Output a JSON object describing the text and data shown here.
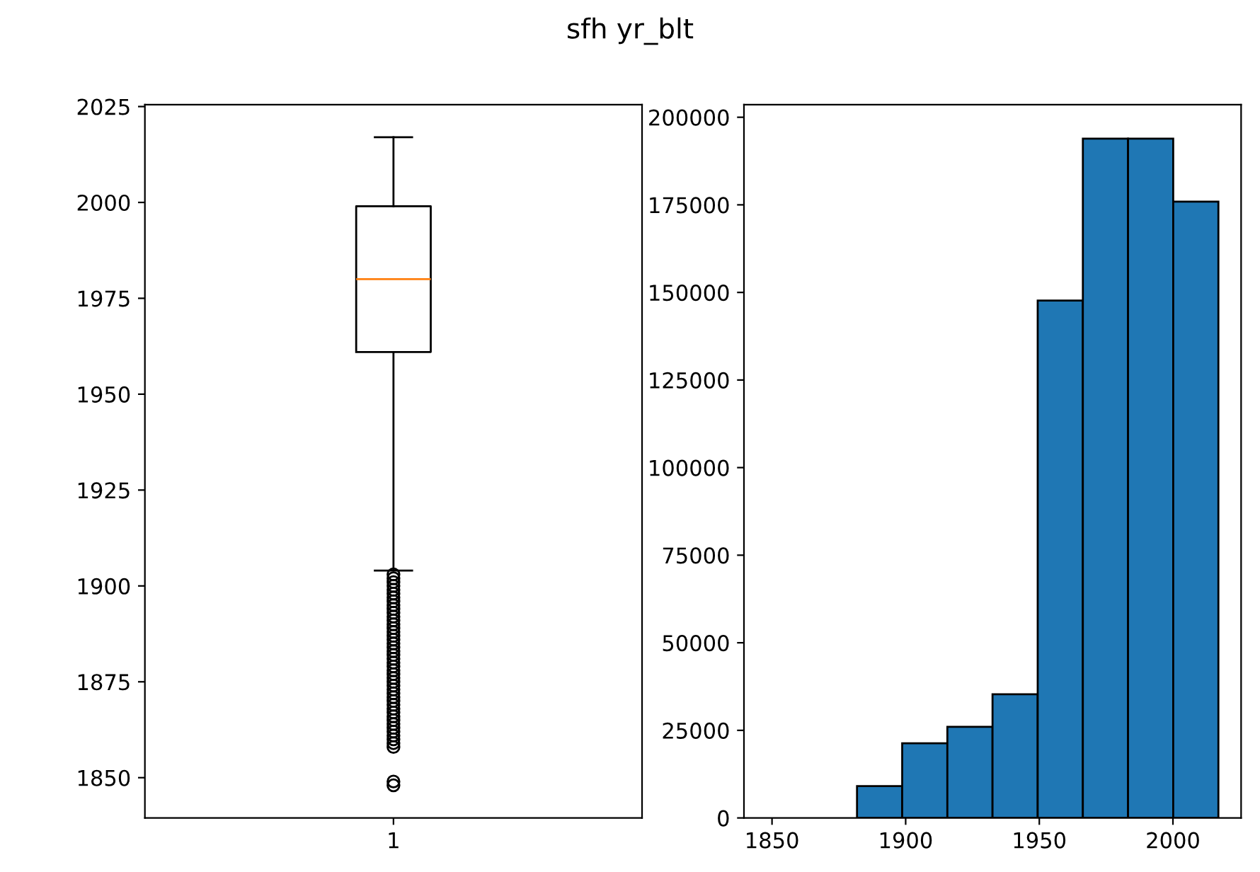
{
  "chart_data": [
    {
      "type": "box",
      "title": "sfh yr_blt",
      "categories": [
        "1"
      ],
      "boxes": [
        {
          "low": 1904,
          "q1": 1961,
          "median": 1980,
          "q3": 1999,
          "high": 2017,
          "outliers": [
            1848,
            1849,
            1858,
            1859,
            1860,
            1861,
            1862,
            1863,
            1864,
            1865,
            1866,
            1867,
            1868,
            1869,
            1870,
            1871,
            1872,
            1873,
            1874,
            1875,
            1876,
            1877,
            1878,
            1879,
            1880,
            1881,
            1882,
            1883,
            1884,
            1885,
            1886,
            1887,
            1888,
            1889,
            1890,
            1891,
            1892,
            1893,
            1894,
            1895,
            1896,
            1897,
            1898,
            1899,
            1900,
            1901,
            1902,
            1903
          ]
        }
      ],
      "ylim": [
        1839.5,
        2025.5
      ],
      "yticks": [
        1850,
        1875,
        1900,
        1925,
        1950,
        1975,
        2000,
        2025
      ],
      "grid": false
    },
    {
      "type": "histogram",
      "bins": [
        1848,
        1864.9,
        1881.8,
        1898.7,
        1915.6,
        1932.5,
        1949.4,
        1966.3,
        1983.2,
        2000.1,
        2017
      ],
      "values": [
        0,
        0,
        9100,
        21300,
        26000,
        35300,
        147700,
        193900,
        193900,
        175900
      ],
      "color": "#1f77b4",
      "xlim": [
        1839.5,
        2025.5
      ],
      "xticks": [
        1850,
        1900,
        1950,
        2000
      ],
      "ylim": [
        0,
        203600
      ],
      "yticks": [
        0,
        25000,
        50000,
        75000,
        100000,
        125000,
        150000,
        175000,
        200000
      ],
      "grid": false
    }
  ]
}
